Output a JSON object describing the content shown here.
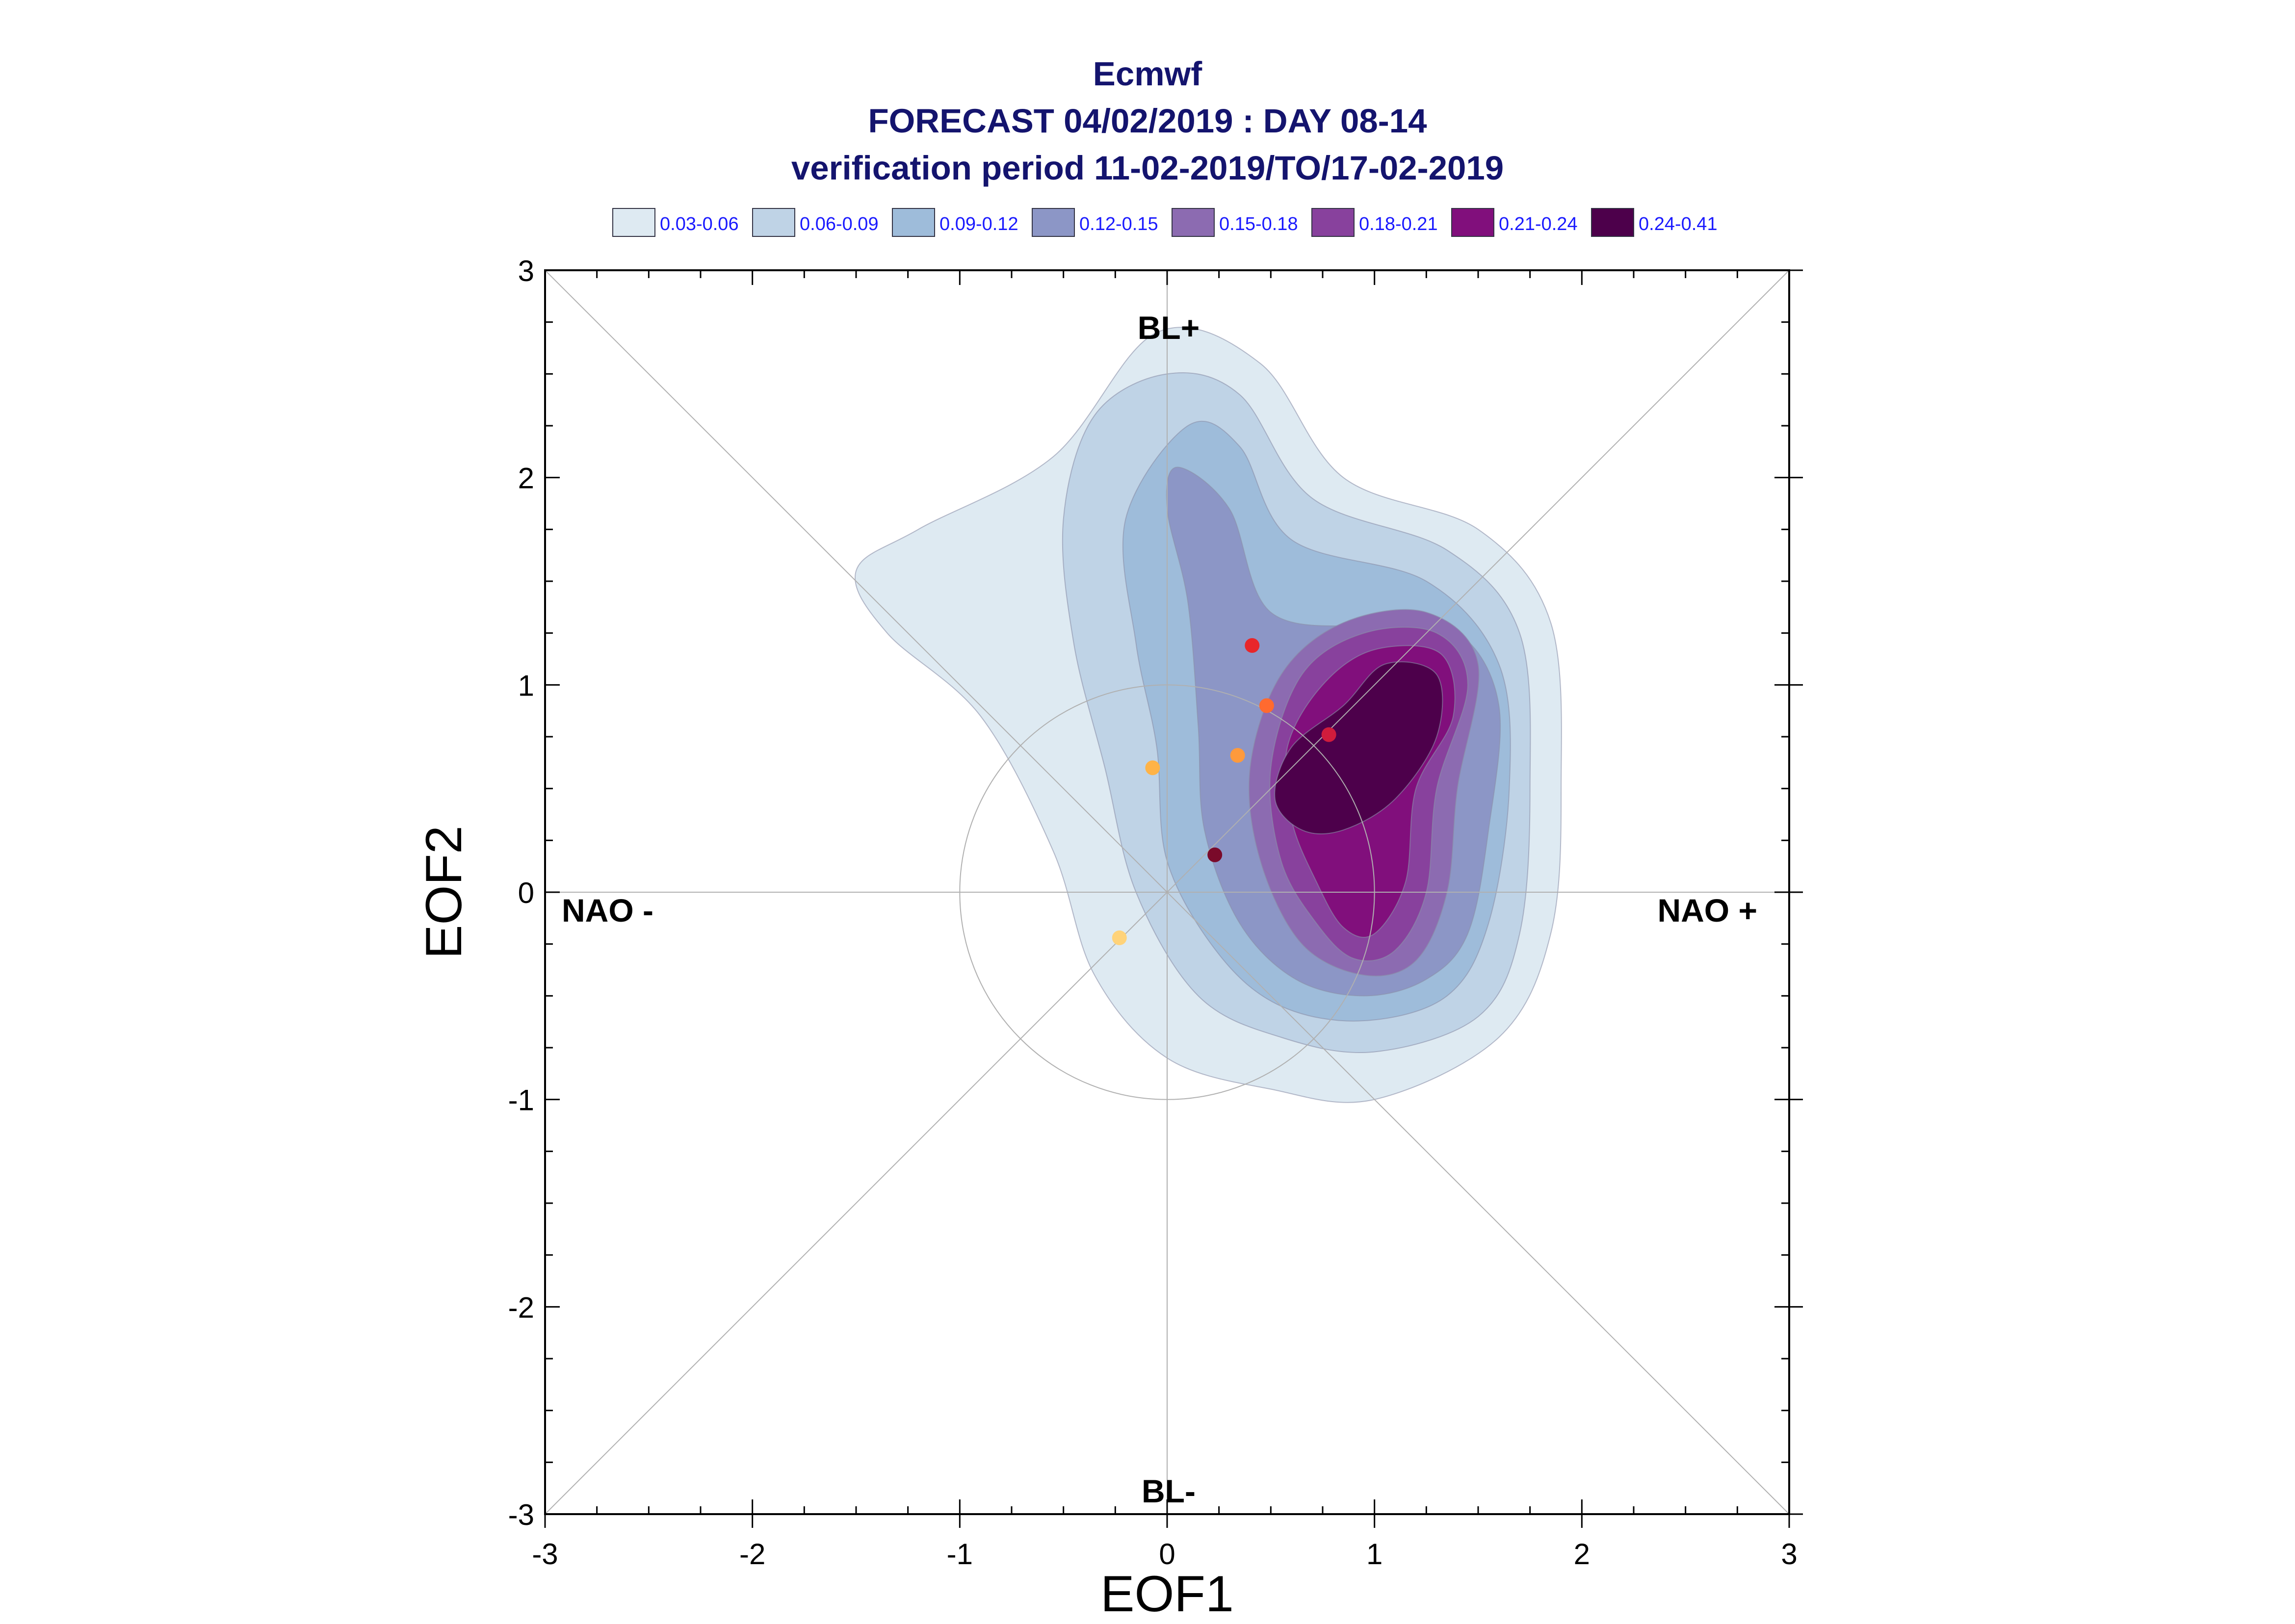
{
  "chart_data": {
    "type": "scatter",
    "title_lines": [
      "Ecmwf",
      "FORECAST 04/02/2019 : DAY 08-14",
      "verification period 11-02-2019/TO/17-02-2019"
    ],
    "xlabel": "EOF1",
    "ylabel": "EOF2",
    "xlim": [
      -3,
      3
    ],
    "ylim": [
      -3,
      3
    ],
    "xticks": [
      "-3",
      "-2",
      "-1",
      "0",
      "1",
      "2",
      "3"
    ],
    "yticks": [
      "-3",
      "-2",
      "-1",
      "0",
      "1",
      "2",
      "3"
    ],
    "regime_labels": {
      "top": "BL+",
      "bottom": "BL-",
      "left": "NAO -",
      "right": "NAO +"
    },
    "legend": [
      {
        "label": "0.03-0.06",
        "color": "#deeaf2"
      },
      {
        "label": "0.06-0.09",
        "color": "#bfd3e6"
      },
      {
        "label": "0.09-0.12",
        "color": "#9ebcda"
      },
      {
        "label": "0.12-0.15",
        "color": "#8c96c6"
      },
      {
        "label": "0.15-0.18",
        "color": "#8c6bb1"
      },
      {
        "label": "0.18-0.21",
        "color": "#88419d"
      },
      {
        "label": "0.21-0.24",
        "color": "#810f7c"
      },
      {
        "label": "0.24-0.41",
        "color": "#4d004b"
      }
    ],
    "density_peak": [
      1.05,
      0.6
    ],
    "points": [
      {
        "x": -0.23,
        "y": -0.22,
        "color": "#ffd37a"
      },
      {
        "x": -0.07,
        "y": 0.6,
        "color": "#ffb347"
      },
      {
        "x": 0.34,
        "y": 0.66,
        "color": "#ff9a3c"
      },
      {
        "x": 0.48,
        "y": 0.9,
        "color": "#ff6a2f"
      },
      {
        "x": 0.41,
        "y": 1.19,
        "color": "#e8262a"
      },
      {
        "x": 0.78,
        "y": 0.76,
        "color": "#d01c3c"
      },
      {
        "x": 0.23,
        "y": 0.18,
        "color": "#7a0a2a"
      }
    ]
  }
}
